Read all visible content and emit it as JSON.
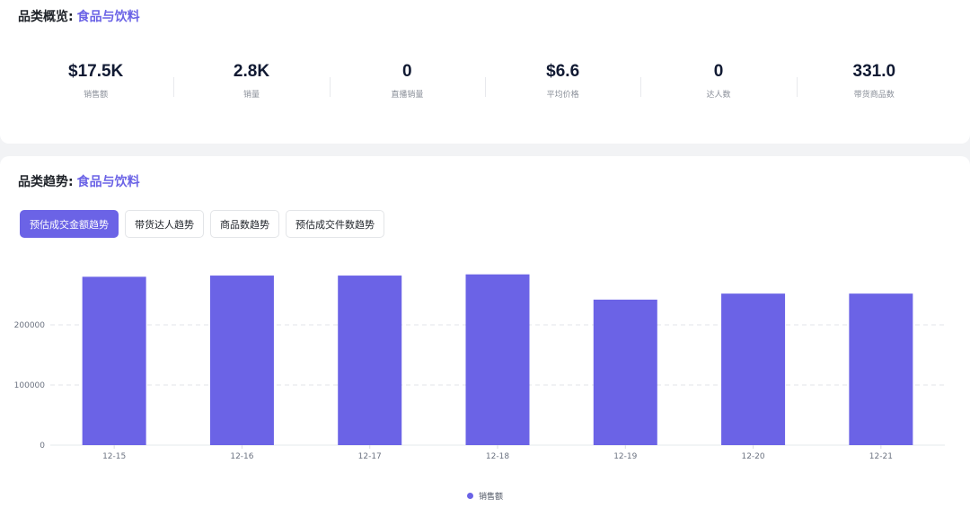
{
  "overview": {
    "title_prefix": "品类概览:",
    "category": "食品与饮料",
    "stats": [
      {
        "value": "$17.5K",
        "label": "销售额"
      },
      {
        "value": "2.8K",
        "label": "销量"
      },
      {
        "value": "0",
        "label": "直播销量"
      },
      {
        "value": "$6.6",
        "label": "平均价格"
      },
      {
        "value": "0",
        "label": "达人数"
      },
      {
        "value": "331.0",
        "label": "带货商品数"
      }
    ]
  },
  "trend": {
    "title_prefix": "品类趋势:",
    "category": "食品与饮料",
    "tabs": [
      {
        "label": "预估成交金额趋势",
        "active": true
      },
      {
        "label": "带货达人趋势",
        "active": false
      },
      {
        "label": "商品数趋势",
        "active": false
      },
      {
        "label": "预估成交件数趋势",
        "active": false
      }
    ]
  },
  "colors": {
    "accent": "#6b63e6"
  },
  "chart_data": {
    "type": "bar",
    "categories": [
      "12-15",
      "12-16",
      "12-17",
      "12-18",
      "12-19",
      "12-20",
      "12-21"
    ],
    "series": [
      {
        "name": "销售额",
        "values": [
          280000,
          282000,
          282000,
          284000,
          242000,
          252000,
          252000
        ]
      }
    ],
    "yticks": [
      0,
      100000,
      200000
    ],
    "ylim": [
      0,
      300000
    ],
    "grid": true,
    "legend": "bottom-center"
  }
}
